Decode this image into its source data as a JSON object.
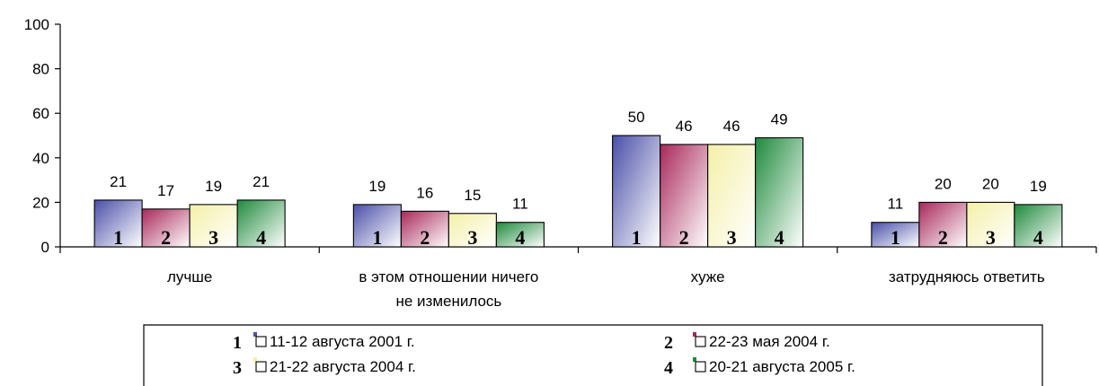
{
  "chart_data": {
    "type": "bar",
    "categories": [
      [
        "лучше"
      ],
      [
        "в этом отношении ничего",
        "не изменилось"
      ],
      [
        "хуже"
      ],
      [
        "затрудняюсь ответить"
      ]
    ],
    "series": [
      {
        "name": "11-12 августа 2001 г.",
        "number": "1",
        "color": "#4a4fa8",
        "values": [
          21,
          19,
          50,
          11
        ]
      },
      {
        "name": "22-23 мая 2004 г.",
        "number": "2",
        "color": "#a8285a",
        "values": [
          17,
          16,
          46,
          20
        ]
      },
      {
        "name": "21-22 августа 2004 г.",
        "number": "3",
        "color": "#f4f0a8",
        "values": [
          19,
          15,
          46,
          20
        ]
      },
      {
        "name": "20-21 августа 2005 г.",
        "number": "4",
        "color": "#1e8a3c",
        "values": [
          21,
          11,
          49,
          19
        ]
      }
    ],
    "yticks": [
      "0",
      "20",
      "40",
      "60",
      "80",
      "100"
    ],
    "ylim": [
      0,
      100
    ],
    "grid": false,
    "legend": "bottom"
  }
}
